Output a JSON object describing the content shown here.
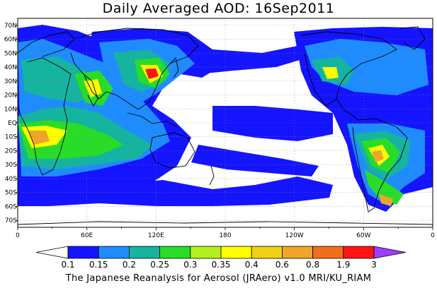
{
  "title": "Daily Averaged AOD: 16Sep2011",
  "footer": "The Japanese Reanalysis for Aerosol (JRAero) v1.0 MRI/KU_RIAM",
  "map": {
    "lat_labels": [
      "70N",
      "60N",
      "50N",
      "40N",
      "30N",
      "20N",
      "10N",
      "EQ",
      "10S",
      "20S",
      "30S",
      "40S",
      "50S",
      "60S",
      "70S"
    ],
    "lon_labels": [
      "0",
      "60E",
      "120E",
      "180",
      "120W",
      "60W",
      "0"
    ]
  },
  "colorbar": {
    "labels": [
      "0.1",
      "0.15",
      "0.2",
      "0.25",
      "0.3",
      "0.35",
      "0.4",
      "0.6",
      "0.8",
      "1.9",
      "3"
    ],
    "colors": [
      "#ffffff",
      "#1414ff",
      "#1e8cff",
      "#14b4a0",
      "#28dc28",
      "#b4f01e",
      "#ffff00",
      "#f0d214",
      "#f0a528",
      "#f06e1e",
      "#ff1414",
      "#a03cff"
    ]
  },
  "palette": {
    "ocean": "#ffffff",
    "coast": "#000000",
    "grid": "#888888"
  }
}
